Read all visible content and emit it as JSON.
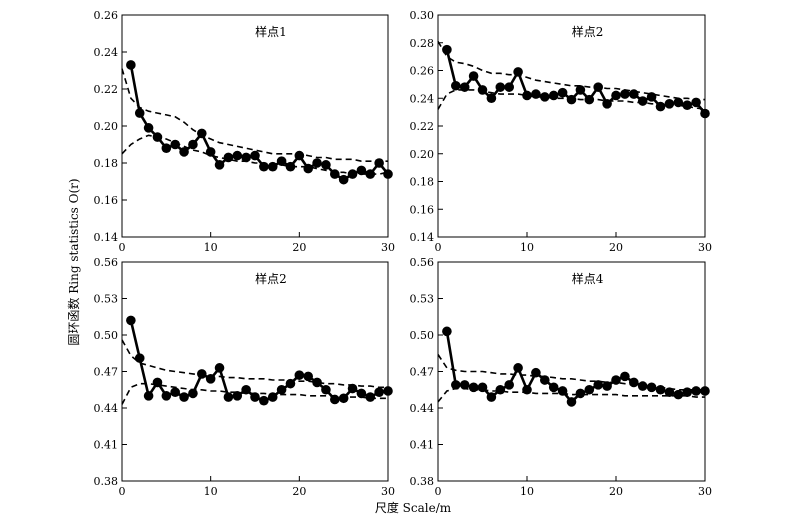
{
  "figure": {
    "ylabel": "圆环函数 Ring statistics O(r)",
    "xlabel": "尺度 Scale/m"
  },
  "chart_data": [
    {
      "type": "line",
      "title": "样点1",
      "xlim": [
        0,
        30
      ],
      "ylim": [
        0.14,
        0.26
      ],
      "xticks": [
        0,
        10,
        20,
        30
      ],
      "yticks": [
        "0.14",
        "0.16",
        "0.18",
        "0.20",
        "0.22",
        "0.24",
        "0.26"
      ],
      "series": [
        {
          "style": "observed",
          "x": [
            1,
            2,
            3,
            4,
            5,
            6,
            7,
            8,
            9,
            10,
            11,
            12,
            13,
            14,
            15,
            16,
            17,
            18,
            19,
            20,
            21,
            22,
            23,
            24,
            25,
            26,
            27,
            28,
            29,
            30
          ],
          "y": [
            0.233,
            0.207,
            0.199,
            0.194,
            0.188,
            0.19,
            0.186,
            0.19,
            0.196,
            0.186,
            0.179,
            0.183,
            0.184,
            0.183,
            0.184,
            0.178,
            0.178,
            0.181,
            0.178,
            0.184,
            0.177,
            0.18,
            0.179,
            0.174,
            0.171,
            0.174,
            0.176,
            0.174,
            0.18,
            0.174
          ]
        },
        {
          "style": "envelope-upper",
          "x": [
            0,
            1,
            2,
            3,
            4,
            5,
            6,
            7,
            8,
            9,
            10,
            11,
            12,
            13,
            14,
            15,
            16,
            17,
            18,
            19,
            20,
            21,
            22,
            23,
            24,
            25,
            26,
            27,
            28,
            29,
            30
          ],
          "y": [
            0.231,
            0.215,
            0.21,
            0.208,
            0.207,
            0.206,
            0.205,
            0.202,
            0.198,
            0.195,
            0.193,
            0.191,
            0.19,
            0.189,
            0.188,
            0.187,
            0.186,
            0.185,
            0.185,
            0.185,
            0.185,
            0.184,
            0.183,
            0.183,
            0.182,
            0.182,
            0.182,
            0.181,
            0.181,
            0.181,
            0.181
          ]
        },
        {
          "style": "envelope-lower",
          "x": [
            0,
            1,
            2,
            3,
            4,
            5,
            6,
            7,
            8,
            9,
            10,
            11,
            12,
            13,
            14,
            15,
            16,
            17,
            18,
            19,
            20,
            21,
            22,
            23,
            24,
            25,
            26,
            27,
            28,
            29,
            30
          ],
          "y": [
            0.185,
            0.19,
            0.193,
            0.195,
            0.194,
            0.193,
            0.191,
            0.189,
            0.187,
            0.186,
            0.184,
            0.183,
            0.182,
            0.181,
            0.181,
            0.18,
            0.18,
            0.179,
            0.179,
            0.178,
            0.178,
            0.178,
            0.177,
            0.176,
            0.175,
            0.175,
            0.174,
            0.174,
            0.174,
            0.174,
            0.175
          ]
        }
      ]
    },
    {
      "type": "line",
      "title": "样点2",
      "xlim": [
        0,
        30
      ],
      "ylim": [
        0.14,
        0.3
      ],
      "xticks": [
        0,
        10,
        20,
        30
      ],
      "yticks": [
        "0.14",
        "0.16",
        "0.18",
        "0.20",
        "0.22",
        "0.24",
        "0.26",
        "0.28",
        "0.30"
      ],
      "series": [
        {
          "style": "observed",
          "x": [
            1,
            2,
            3,
            4,
            5,
            6,
            7,
            8,
            9,
            10,
            11,
            12,
            13,
            14,
            15,
            16,
            17,
            18,
            19,
            20,
            21,
            22,
            23,
            24,
            25,
            26,
            27,
            28,
            29,
            30
          ],
          "y": [
            0.275,
            0.249,
            0.248,
            0.256,
            0.246,
            0.24,
            0.248,
            0.248,
            0.259,
            0.242,
            0.243,
            0.241,
            0.242,
            0.244,
            0.239,
            0.246,
            0.239,
            0.248,
            0.236,
            0.242,
            0.243,
            0.243,
            0.238,
            0.241,
            0.234,
            0.236,
            0.237,
            0.235,
            0.237,
            0.229
          ]
        },
        {
          "style": "envelope-upper",
          "x": [
            0,
            1,
            2,
            3,
            4,
            5,
            6,
            7,
            8,
            9,
            10,
            11,
            12,
            13,
            14,
            15,
            16,
            17,
            18,
            19,
            20,
            21,
            22,
            23,
            24,
            25,
            26,
            27,
            28,
            29,
            30
          ],
          "y": [
            0.281,
            0.27,
            0.266,
            0.265,
            0.263,
            0.26,
            0.258,
            0.258,
            0.257,
            0.257,
            0.255,
            0.253,
            0.252,
            0.251,
            0.25,
            0.249,
            0.249,
            0.248,
            0.248,
            0.247,
            0.247,
            0.246,
            0.245,
            0.244,
            0.243,
            0.242,
            0.241,
            0.24,
            0.24,
            0.239,
            0.239
          ]
        },
        {
          "style": "envelope-lower",
          "x": [
            0,
            1,
            2,
            3,
            4,
            5,
            6,
            7,
            8,
            9,
            10,
            11,
            12,
            13,
            14,
            15,
            16,
            17,
            18,
            19,
            20,
            21,
            22,
            23,
            24,
            25,
            26,
            27,
            28,
            29,
            30
          ],
          "y": [
            0.232,
            0.243,
            0.246,
            0.246,
            0.246,
            0.245,
            0.244,
            0.243,
            0.243,
            0.243,
            0.242,
            0.241,
            0.241,
            0.24,
            0.24,
            0.24,
            0.239,
            0.239,
            0.239,
            0.238,
            0.238,
            0.238,
            0.237,
            0.237,
            0.236,
            0.236,
            0.235,
            0.235,
            0.234,
            0.233,
            0.232
          ]
        }
      ]
    },
    {
      "type": "line",
      "title": "样点2",
      "xlim": [
        0,
        30
      ],
      "ylim": [
        0.38,
        0.56
      ],
      "xticks": [
        0,
        10,
        20,
        30
      ],
      "yticks": [
        "0.38",
        "0.41",
        "0.44",
        "0.47",
        "0.50",
        "0.53",
        "0.56"
      ],
      "series": [
        {
          "style": "observed",
          "x": [
            1,
            2,
            3,
            4,
            5,
            6,
            7,
            8,
            9,
            10,
            11,
            12,
            13,
            14,
            15,
            16,
            17,
            18,
            19,
            20,
            21,
            22,
            23,
            24,
            25,
            26,
            27,
            28,
            29,
            30
          ],
          "y": [
            0.512,
            0.481,
            0.45,
            0.461,
            0.45,
            0.453,
            0.449,
            0.452,
            0.468,
            0.464,
            0.473,
            0.449,
            0.45,
            0.455,
            0.449,
            0.446,
            0.449,
            0.455,
            0.46,
            0.467,
            0.466,
            0.461,
            0.455,
            0.447,
            0.448,
            0.456,
            0.452,
            0.449,
            0.453,
            0.454
          ]
        },
        {
          "style": "envelope-upper",
          "x": [
            0,
            1,
            2,
            3,
            4,
            5,
            6,
            7,
            8,
            9,
            10,
            11,
            12,
            13,
            14,
            15,
            16,
            17,
            18,
            19,
            20,
            21,
            22,
            23,
            24,
            25,
            26,
            27,
            28,
            29,
            30
          ],
          "y": [
            0.496,
            0.483,
            0.477,
            0.475,
            0.473,
            0.471,
            0.47,
            0.469,
            0.468,
            0.467,
            0.466,
            0.466,
            0.465,
            0.465,
            0.464,
            0.464,
            0.464,
            0.463,
            0.463,
            0.463,
            0.462,
            0.462,
            0.461,
            0.46,
            0.46,
            0.459,
            0.459,
            0.458,
            0.458,
            0.457,
            0.457
          ]
        },
        {
          "style": "envelope-lower",
          "x": [
            0,
            1,
            2,
            3,
            4,
            5,
            6,
            7,
            8,
            9,
            10,
            11,
            12,
            13,
            14,
            15,
            16,
            17,
            18,
            19,
            20,
            21,
            22,
            23,
            24,
            25,
            26,
            27,
            28,
            29,
            30
          ],
          "y": [
            0.443,
            0.457,
            0.46,
            0.46,
            0.459,
            0.458,
            0.457,
            0.456,
            0.455,
            0.455,
            0.454,
            0.454,
            0.453,
            0.453,
            0.452,
            0.452,
            0.452,
            0.451,
            0.451,
            0.451,
            0.451,
            0.45,
            0.45,
            0.45,
            0.45,
            0.449,
            0.449,
            0.449,
            0.448,
            0.448,
            0.448
          ]
        }
      ]
    },
    {
      "type": "line",
      "title": "样点4",
      "xlim": [
        0,
        30
      ],
      "ylim": [
        0.38,
        0.56
      ],
      "xticks": [
        0,
        10,
        20,
        30
      ],
      "yticks": [
        "0.38",
        "0.41",
        "0.44",
        "0.47",
        "0.50",
        "0.53",
        "0.56"
      ],
      "series": [
        {
          "style": "observed",
          "x": [
            1,
            2,
            3,
            4,
            5,
            6,
            7,
            8,
            9,
            10,
            11,
            12,
            13,
            14,
            15,
            16,
            17,
            18,
            19,
            20,
            21,
            22,
            23,
            24,
            25,
            26,
            27,
            28,
            29,
            30
          ],
          "y": [
            0.503,
            0.459,
            0.459,
            0.457,
            0.457,
            0.449,
            0.455,
            0.459,
            0.473,
            0.455,
            0.469,
            0.463,
            0.457,
            0.454,
            0.445,
            0.452,
            0.455,
            0.459,
            0.458,
            0.463,
            0.466,
            0.461,
            0.458,
            0.457,
            0.455,
            0.453,
            0.451,
            0.453,
            0.454,
            0.454
          ]
        },
        {
          "style": "envelope-upper",
          "x": [
            0,
            1,
            2,
            3,
            4,
            5,
            6,
            7,
            8,
            9,
            10,
            11,
            12,
            13,
            14,
            15,
            16,
            17,
            18,
            19,
            20,
            21,
            22,
            23,
            24,
            25,
            26,
            27,
            28,
            29,
            30
          ],
          "y": [
            0.484,
            0.473,
            0.471,
            0.47,
            0.47,
            0.47,
            0.469,
            0.468,
            0.468,
            0.467,
            0.467,
            0.466,
            0.466,
            0.465,
            0.464,
            0.464,
            0.463,
            0.462,
            0.462,
            0.461,
            0.461,
            0.46,
            0.459,
            0.458,
            0.458,
            0.457,
            0.456,
            0.455,
            0.455,
            0.455,
            0.455
          ]
        },
        {
          "style": "envelope-lower",
          "x": [
            0,
            1,
            2,
            3,
            4,
            5,
            6,
            7,
            8,
            9,
            10,
            11,
            12,
            13,
            14,
            15,
            16,
            17,
            18,
            19,
            20,
            21,
            22,
            23,
            24,
            25,
            26,
            27,
            28,
            29,
            30
          ],
          "y": [
            0.445,
            0.454,
            0.456,
            0.456,
            0.455,
            0.455,
            0.454,
            0.454,
            0.453,
            0.453,
            0.453,
            0.452,
            0.452,
            0.452,
            0.452,
            0.451,
            0.451,
            0.451,
            0.451,
            0.451,
            0.451,
            0.45,
            0.45,
            0.45,
            0.45,
            0.45,
            0.45,
            0.45,
            0.45,
            0.449,
            0.449
          ]
        }
      ]
    }
  ]
}
